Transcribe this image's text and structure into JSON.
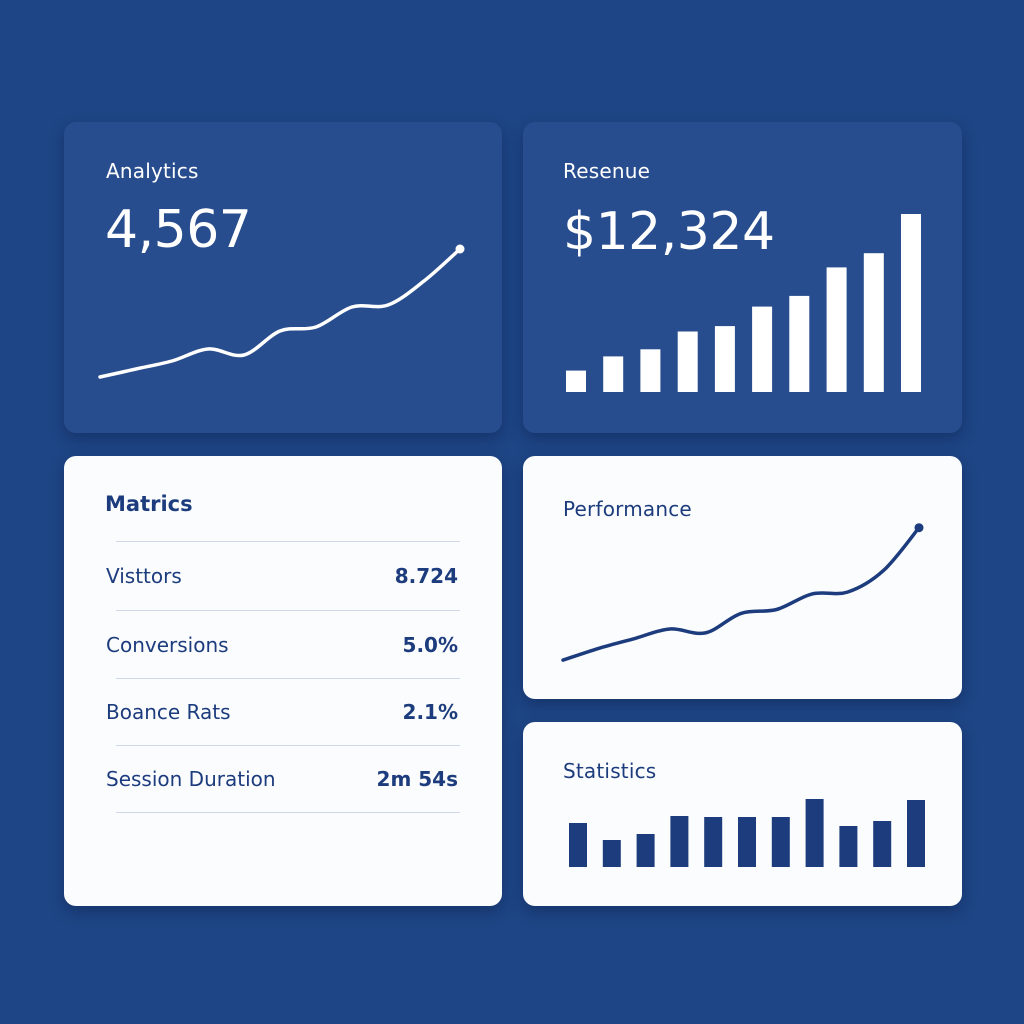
{
  "colors": {
    "background": "#1e4585",
    "dark_card": "#284d8e",
    "light_card": "#fbfcfe",
    "accent": "#1c3c7d",
    "white": "#ffffff"
  },
  "analytics": {
    "title": "Analytics",
    "value": "4,567",
    "chart_data": {
      "type": "line",
      "x": [
        0,
        1,
        2,
        3,
        4,
        5,
        6,
        7,
        8,
        9,
        10
      ],
      "values": [
        10,
        14,
        18,
        24,
        21,
        33,
        35,
        45,
        46,
        58,
        74
      ],
      "ylim": [
        0,
        80
      ],
      "end_marker": true
    }
  },
  "revenue": {
    "title": "Resenue",
    "value": "$12,324",
    "chart_data": {
      "type": "bar",
      "values": [
        12,
        20,
        24,
        34,
        37,
        48,
        54,
        70,
        78,
        100
      ],
      "ylim": [
        0,
        100
      ]
    }
  },
  "metrics": {
    "title": "Matrics",
    "rows": [
      {
        "label": "Visttors",
        "value": "8.724"
      },
      {
        "label": "Conversions",
        "value": "5.0%"
      },
      {
        "label": "Boance Rats",
        "value": "2.1%"
      },
      {
        "label": "Session Duration",
        "value": "2m 54s"
      }
    ]
  },
  "performance": {
    "title": "Performance",
    "chart_data": {
      "type": "line",
      "x": [
        0,
        1,
        2,
        3,
        4,
        5,
        6,
        7,
        8,
        9,
        10
      ],
      "values": [
        2,
        8,
        13,
        18,
        16,
        26,
        28,
        36,
        37,
        48,
        70
      ],
      "ylim": [
        0,
        75
      ],
      "end_marker": true
    }
  },
  "statistics": {
    "title": "Statistics",
    "chart_data": {
      "type": "bar",
      "values": [
        44,
        27,
        33,
        51,
        50,
        50,
        50,
        68,
        41,
        46,
        67
      ],
      "ylim": [
        0,
        70
      ]
    }
  }
}
